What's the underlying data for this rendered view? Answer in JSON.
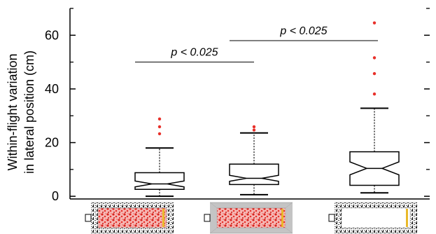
{
  "chart_data": {
    "type": "box",
    "ylabel_lines": [
      "Within-flight variation",
      "in lateral position (cm)"
    ],
    "ylim": [
      -1,
      70
    ],
    "yticks": [
      0,
      20,
      40,
      60
    ],
    "ytick_labels": [
      "0",
      "20",
      "40",
      "60"
    ],
    "ytick_minor": [
      10,
      30,
      50,
      70
    ],
    "categories": [
      "",
      "",
      ""
    ],
    "boxes": [
      {
        "name": "",
        "whisker_low": 0,
        "q1": 2.6,
        "median": 4.6,
        "notch_low": 3.5,
        "notch_high": 5.7,
        "q3": 8.8,
        "whisker_high": 18.0,
        "outliers": [
          23.3,
          25.9,
          28.8
        ]
      },
      {
        "name": "",
        "whisker_low": 0.6,
        "q1": 4.4,
        "median": 6.7,
        "notch_low": 5.6,
        "notch_high": 7.8,
        "q3": 12.0,
        "whisker_high": 23.6,
        "outliers": [
          24.7,
          25.9
        ]
      },
      {
        "name": "",
        "whisker_low": 1.3,
        "q1": 4.1,
        "median": 10.4,
        "notch_low": 8.0,
        "notch_high": 12.8,
        "q3": 16.6,
        "whisker_high": 32.8,
        "outliers": [
          38.1,
          45.7,
          51.6,
          64.6
        ]
      }
    ],
    "significance": [
      {
        "from": 0,
        "to": 1,
        "y": 50,
        "label": "p < 0.025"
      },
      {
        "from": 1,
        "to": 2,
        "y": 58,
        "label": "p < 0.025"
      }
    ],
    "thumbnails": [
      {
        "walls": "textured",
        "floor": "red-dots",
        "end_bar": "yellow"
      },
      {
        "walls": "plain-gray",
        "floor": "red-dots",
        "end_bar": "yellow"
      },
      {
        "walls": "textured",
        "floor": "white",
        "end_bar": "yellow"
      }
    ],
    "colors": {
      "outlier": "#e8302a",
      "box": "#000000",
      "end_bar": "#e9b92a",
      "plain_wall": "#c4c4c4"
    },
    "grid": false
  }
}
